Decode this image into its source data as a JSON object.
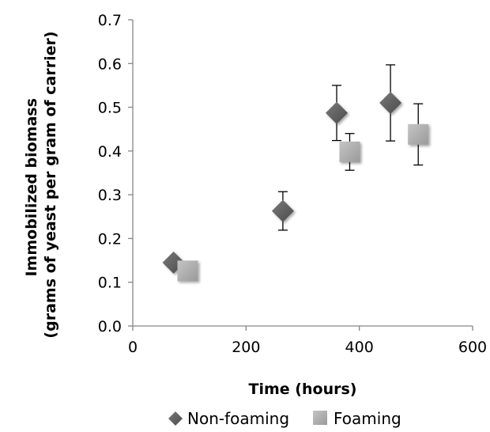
{
  "chart_data": {
    "type": "scatter",
    "title": "",
    "xlabel": "Time (hours)",
    "ylabel_lines": [
      "Immobilized biomass",
      "(grams of yeast per gram of carrier)"
    ],
    "xlim": [
      0,
      600
    ],
    "ylim": [
      0,
      0.7
    ],
    "x_ticks": [
      "0",
      "200",
      "400",
      "600"
    ],
    "y_ticks": [
      "0.0",
      "0.1",
      "0.2",
      "0.3",
      "0.4",
      "0.5",
      "0.6",
      "0.7"
    ],
    "grid": false,
    "legend_position": "bottom",
    "series": [
      {
        "name": "Non-foaming",
        "marker": "diamond",
        "color": "#5a5a5a",
        "points": [
          {
            "x": 72,
            "y": 0.145,
            "err": 0
          },
          {
            "x": 265,
            "y": 0.263,
            "err": 0.044
          },
          {
            "x": 360,
            "y": 0.487,
            "err": 0.063
          },
          {
            "x": 455,
            "y": 0.51,
            "err": 0.087
          }
        ]
      },
      {
        "name": "Foaming",
        "marker": "square",
        "color": "#a8a8a8",
        "points": [
          {
            "x": 97,
            "y": 0.126,
            "err": 0
          },
          {
            "x": 383,
            "y": 0.398,
            "err": 0.042
          },
          {
            "x": 504,
            "y": 0.438,
            "err": 0.07
          }
        ]
      }
    ]
  }
}
